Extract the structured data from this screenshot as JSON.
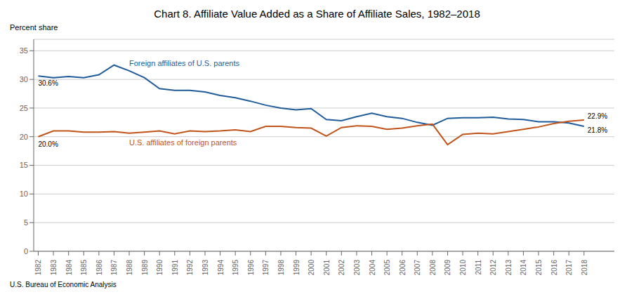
{
  "chart_data": {
    "type": "line",
    "title": "Chart 8. Affiliate Value Added as a Share of Affiliate Sales, 1982–2018",
    "ylabel": "Percent share",
    "annotations": [
      "U.S. Bureau of Economic Analysis"
    ],
    "x": [
      1982,
      1983,
      1984,
      1985,
      1986,
      1987,
      1988,
      1989,
      1990,
      1991,
      1992,
      1993,
      1994,
      1995,
      1996,
      1997,
      1998,
      1999,
      2000,
      2001,
      2002,
      2003,
      2004,
      2005,
      2006,
      2007,
      2008,
      2009,
      2010,
      2011,
      2012,
      2013,
      2014,
      2015,
      2016,
      2017,
      2018
    ],
    "series": [
      {
        "name": "Foreign affiliates of U.S. parents",
        "color": "#1F5C99",
        "values": [
          30.6,
          30.3,
          30.5,
          30.3,
          30.8,
          32.5,
          31.5,
          30.3,
          28.4,
          28.1,
          28.1,
          27.8,
          27.2,
          26.8,
          26.2,
          25.5,
          25.0,
          24.7,
          24.9,
          23.0,
          22.8,
          23.5,
          24.1,
          23.5,
          23.2,
          22.5,
          22.0,
          23.2,
          23.3,
          23.3,
          23.4,
          23.1,
          23.0,
          22.6,
          22.6,
          22.4,
          21.8
        ],
        "value_labels": [
          "30.6%",
          null,
          null,
          null,
          null,
          null,
          null,
          null,
          null,
          null,
          null,
          null,
          null,
          null,
          null,
          null,
          null,
          null,
          null,
          null,
          null,
          null,
          null,
          null,
          null,
          null,
          null,
          null,
          null,
          null,
          null,
          null,
          null,
          null,
          null,
          null,
          "21.8%"
        ]
      },
      {
        "name": "U.S. affiliates of foreign parents",
        "color": "#C0541A",
        "values": [
          20.0,
          21.0,
          21.0,
          20.8,
          20.8,
          20.9,
          20.6,
          20.8,
          21.0,
          20.5,
          21.0,
          20.9,
          21.0,
          21.2,
          20.9,
          21.8,
          21.8,
          21.6,
          21.5,
          20.1,
          21.6,
          21.9,
          21.8,
          21.3,
          21.5,
          21.9,
          22.2,
          18.6,
          20.4,
          20.6,
          20.5,
          20.9,
          21.3,
          21.7,
          22.3,
          22.7,
          22.9
        ],
        "value_labels": [
          "20.0%",
          null,
          null,
          null,
          null,
          null,
          null,
          null,
          null,
          null,
          null,
          null,
          null,
          null,
          null,
          null,
          null,
          null,
          null,
          null,
          null,
          null,
          null,
          null,
          null,
          null,
          null,
          null,
          null,
          null,
          null,
          null,
          null,
          null,
          null,
          null,
          "22.9%"
        ]
      }
    ],
    "xlim": [
      1981.7,
      2020
    ],
    "xticks": [
      1982,
      1983,
      1984,
      1985,
      1986,
      1987,
      1988,
      1989,
      1990,
      1991,
      1992,
      1993,
      1994,
      1995,
      1996,
      1997,
      1998,
      1999,
      2000,
      2001,
      2002,
      2003,
      2004,
      2005,
      2006,
      2007,
      2008,
      2009,
      2010,
      2011,
      2012,
      2013,
      2014,
      2015,
      2016,
      2017,
      2018
    ],
    "ylim": [
      0,
      37
    ],
    "yticks": [
      0,
      5,
      10,
      15,
      20,
      25,
      30,
      35
    ],
    "grid": true
  }
}
